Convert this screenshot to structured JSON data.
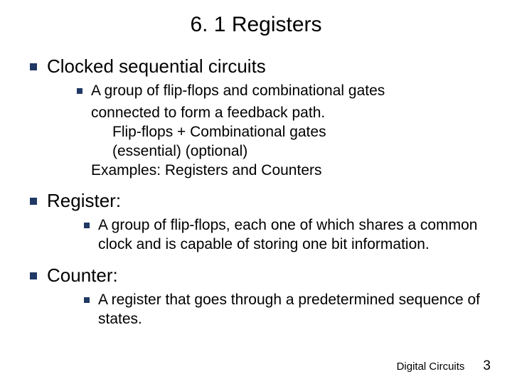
{
  "title": "6. 1 Registers",
  "section1": {
    "heading": "Clocked sequential circuits",
    "sub_line1a": "A group of flip-flops and combinational gates",
    "sub_line1b": "connected to form a feedback path.",
    "sub_line2": "Flip-flops  +   Combinational gates",
    "sub_line3": "(essential)               (optional)",
    "sub_line4": "Examples: Registers and Counters"
  },
  "section2": {
    "heading": "Register:",
    "sub": "A group of flip-flops, each one of which shares a common clock and is capable of storing one bit information."
  },
  "section3": {
    "heading": "Counter:",
    "sub": "A register that goes through a predetermined sequence of states."
  },
  "footer": {
    "label": "Digital Circuits",
    "page": "3"
  },
  "colors": {
    "bullet": "#1f3864",
    "text": "#000000",
    "background": "#ffffff"
  }
}
